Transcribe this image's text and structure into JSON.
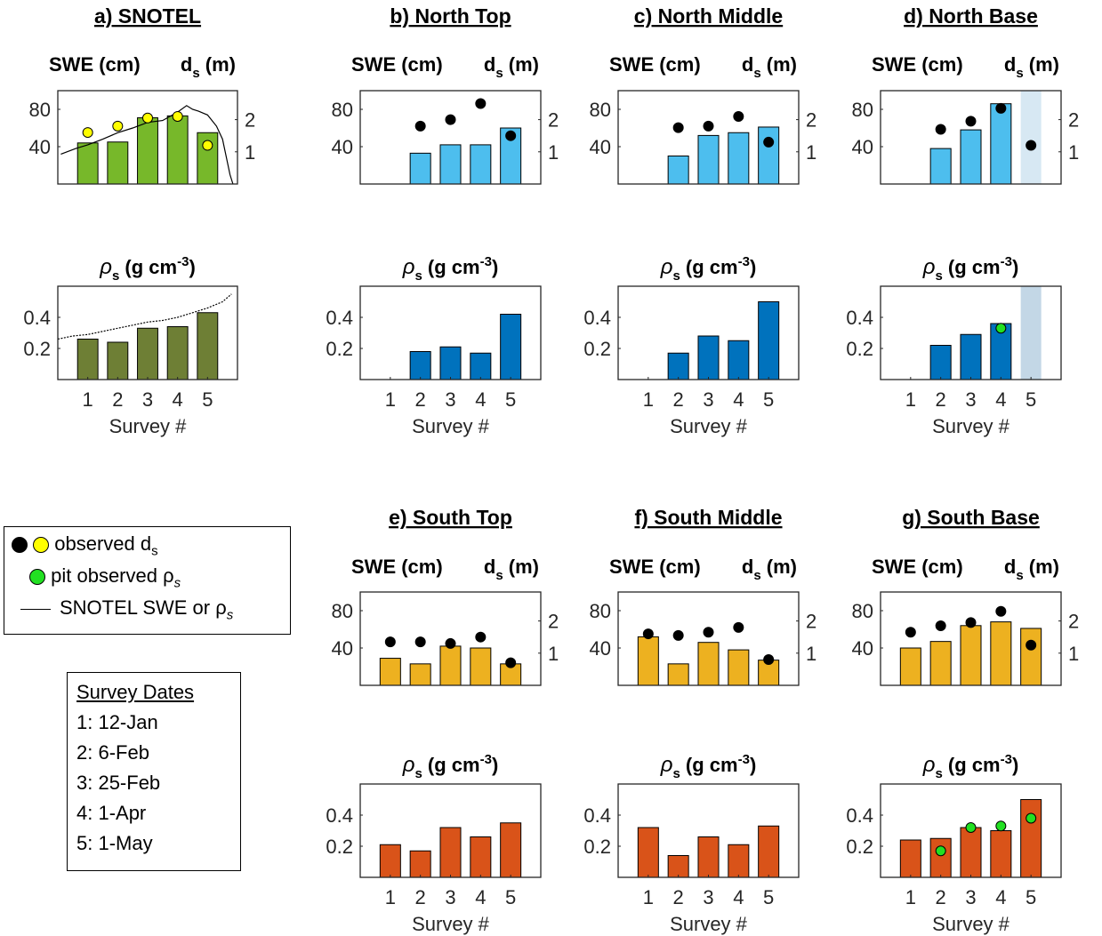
{
  "legend": {
    "observed_ds": "observed d",
    "observed_ds_sub": "s",
    "pit_rho": "pit observed ρ",
    "pit_rho_sub": "s",
    "snotel_line": "SNOTEL SWE or ρ",
    "snotel_line_sub": "s",
    "colors": {
      "black_dot": "#000000",
      "yellow_dot": "#FFFF00",
      "green_dot": "#22E022"
    }
  },
  "survey_dates": {
    "title": "Survey Dates",
    "items": [
      "1: 12-Jan",
      "2: 6-Feb",
      "3: 25-Feb",
      "4: 1-Apr",
      "5: 1-May"
    ]
  },
  "labels": {
    "swe": "SWE (cm)",
    "ds": "d",
    "ds_sub": "s",
    "ds_unit": " (m)",
    "rho": "ρ",
    "rho_sub": "s",
    "rho_unit": " (g cm",
    "rho_exp": "-3",
    "rho_close": ")",
    "xlabel": "Survey #"
  },
  "chart_data": [
    {
      "type": "bar",
      "panel": "a) SNOTEL",
      "variable": "SWE (cm) with d_s (m)",
      "x": [
        1,
        2,
        3,
        4,
        5
      ],
      "values": [
        44,
        45,
        71,
        73,
        55
      ],
      "ds": [
        1.6,
        1.8,
        2.05,
        2.1,
        1.2
      ],
      "ds_marker": "yellow",
      "snotel_swe_line": [
        [
          0.1,
          32
        ],
        [
          0.6,
          38
        ],
        [
          1.0,
          42
        ],
        [
          1.5,
          48
        ],
        [
          2.0,
          55
        ],
        [
          2.5,
          60
        ],
        [
          3.0,
          66
        ],
        [
          3.5,
          68
        ],
        [
          4.0,
          77
        ],
        [
          4.3,
          84
        ],
        [
          4.5,
          80
        ],
        [
          4.7,
          78
        ],
        [
          5.0,
          74
        ],
        [
          5.3,
          62
        ],
        [
          5.5,
          48
        ],
        [
          5.75,
          10
        ],
        [
          5.85,
          0
        ]
      ],
      "ylim": [
        0,
        100
      ],
      "y2lim": [
        0,
        2.9
      ],
      "color": "#77B82A"
    },
    {
      "type": "bar",
      "panel": "a) SNOTEL",
      "variable": "rho_s (g cm-3)",
      "x": [
        1,
        2,
        3,
        4,
        5
      ],
      "values": [
        0.26,
        0.24,
        0.33,
        0.34,
        0.43
      ],
      "snotel_rho_line": [
        [
          0.0,
          0.26
        ],
        [
          0.5,
          0.28
        ],
        [
          1.0,
          0.29
        ],
        [
          1.5,
          0.31
        ],
        [
          2.0,
          0.33
        ],
        [
          2.5,
          0.35
        ],
        [
          3.0,
          0.37
        ],
        [
          3.5,
          0.38
        ],
        [
          4.0,
          0.4
        ],
        [
          4.5,
          0.43
        ],
        [
          5.0,
          0.46
        ],
        [
          5.5,
          0.5
        ],
        [
          5.8,
          0.55
        ]
      ],
      "ylim": [
        0,
        0.6
      ],
      "color": "#6E7F35"
    },
    {
      "type": "bar",
      "panel": "b) North Top",
      "variable": "SWE (cm) with d_s (m)",
      "x": [
        1,
        2,
        3,
        4,
        5
      ],
      "values": [
        null,
        33,
        42,
        42,
        60
      ],
      "ds": [
        null,
        1.8,
        2.0,
        2.5,
        1.5
      ],
      "ds_marker": "black",
      "ylim": [
        0,
        100
      ],
      "y2lim": [
        0,
        2.9
      ],
      "color": "#4DBEEE"
    },
    {
      "type": "bar",
      "panel": "b) North Top",
      "variable": "rho_s (g cm-3)",
      "x": [
        1,
        2,
        3,
        4,
        5
      ],
      "values": [
        null,
        0.18,
        0.21,
        0.17,
        0.42
      ],
      "ylim": [
        0,
        0.6
      ],
      "color": "#0072BD"
    },
    {
      "type": "bar",
      "panel": "c) North Middle",
      "variable": "SWE (cm) with d_s (m)",
      "x": [
        1,
        2,
        3,
        4,
        5
      ],
      "values": [
        null,
        30,
        52,
        55,
        61
      ],
      "ds": [
        null,
        1.75,
        1.8,
        2.1,
        1.3
      ],
      "ds_marker": "black",
      "ylim": [
        0,
        100
      ],
      "y2lim": [
        0,
        2.9
      ],
      "color": "#4DBEEE"
    },
    {
      "type": "bar",
      "panel": "c) North Middle",
      "variable": "rho_s (g cm-3)",
      "x": [
        1,
        2,
        3,
        4,
        5
      ],
      "values": [
        null,
        0.17,
        0.28,
        0.25,
        0.5
      ],
      "ylim": [
        0,
        0.6
      ],
      "color": "#0072BD"
    },
    {
      "type": "bar",
      "panel": "d) North Base",
      "variable": "SWE (cm) with d_s (m)",
      "x": [
        1,
        2,
        3,
        4,
        5
      ],
      "values": [
        null,
        38,
        58,
        86,
        null
      ],
      "ds": [
        null,
        1.7,
        1.95,
        2.35,
        1.2
      ],
      "ds_marker": "black",
      "shaded_x": 5,
      "ylim": [
        0,
        100
      ],
      "y2lim": [
        0,
        2.9
      ],
      "color": "#4DBEEE"
    },
    {
      "type": "bar",
      "panel": "d) North Base",
      "variable": "rho_s (g cm-3)",
      "x": [
        1,
        2,
        3,
        4,
        5
      ],
      "values": [
        null,
        0.22,
        0.29,
        0.36,
        null
      ],
      "pit_rho": [
        null,
        null,
        null,
        0.33,
        null
      ],
      "shaded_x": 5,
      "ylim": [
        0,
        0.6
      ],
      "color": "#0072BD"
    },
    {
      "type": "bar",
      "panel": "e) South Top",
      "variable": "SWE (cm) with d_s (m)",
      "x": [
        1,
        2,
        3,
        4,
        5
      ],
      "values": [
        29,
        23,
        42,
        40,
        23
      ],
      "ds": [
        1.35,
        1.35,
        1.3,
        1.5,
        0.7
      ],
      "ds_marker": "black",
      "ylim": [
        0,
        100
      ],
      "y2lim": [
        0,
        2.9
      ],
      "color": "#EDB120"
    },
    {
      "type": "bar",
      "panel": "e) South Top",
      "variable": "rho_s (g cm-3)",
      "x": [
        1,
        2,
        3,
        4,
        5
      ],
      "values": [
        0.21,
        0.17,
        0.32,
        0.26,
        0.35
      ],
      "ylim": [
        0,
        0.6
      ],
      "color": "#D95319"
    },
    {
      "type": "bar",
      "panel": "f) South Middle",
      "variable": "SWE (cm) with d_s (m)",
      "x": [
        1,
        2,
        3,
        4,
        5
      ],
      "values": [
        52,
        23,
        46,
        38,
        27
      ],
      "ds": [
        1.6,
        1.55,
        1.65,
        1.8,
        0.8
      ],
      "ds_marker": "black",
      "ylim": [
        0,
        100
      ],
      "y2lim": [
        0,
        2.9
      ],
      "color": "#EDB120"
    },
    {
      "type": "bar",
      "panel": "f) South Middle",
      "variable": "rho_s (g cm-3)",
      "x": [
        1,
        2,
        3,
        4,
        5
      ],
      "values": [
        0.32,
        0.14,
        0.26,
        0.21,
        0.33
      ],
      "ylim": [
        0,
        0.6
      ],
      "color": "#D95319"
    },
    {
      "type": "bar",
      "panel": "g) South Base",
      "variable": "SWE (cm) with d_s (m)",
      "x": [
        1,
        2,
        3,
        4,
        5
      ],
      "values": [
        40,
        47,
        64,
        68,
        61
      ],
      "ds": [
        1.65,
        1.85,
        1.95,
        2.3,
        1.25
      ],
      "ds_marker": "black",
      "ylim": [
        0,
        100
      ],
      "y2lim": [
        0,
        2.9
      ],
      "color": "#EDB120"
    },
    {
      "type": "bar",
      "panel": "g) South Base",
      "variable": "rho_s (g cm-3)",
      "x": [
        1,
        2,
        3,
        4,
        5
      ],
      "values": [
        0.24,
        0.25,
        0.32,
        0.3,
        0.5
      ],
      "pit_rho": [
        null,
        0.17,
        0.32,
        0.33,
        0.38
      ],
      "ylim": [
        0,
        0.6
      ],
      "color": "#D95319"
    }
  ]
}
